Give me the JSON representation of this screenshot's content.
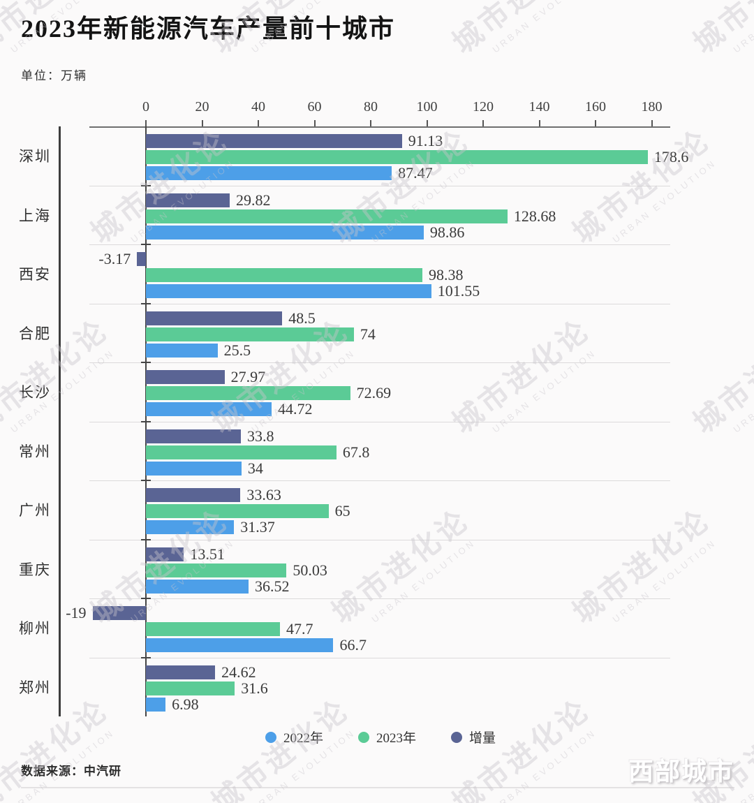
{
  "header": {
    "title": "2023年新能源汽车产量前十城市",
    "unit_label": "单位：万辆"
  },
  "watermark": {
    "line1": "城市进化论",
    "line2": "URBAN EVOLUTION"
  },
  "footer": {
    "source": "数据来源：中汽研",
    "brand": "西部城市"
  },
  "legend": [
    {
      "label": "2022年",
      "color": "#4d9fe8"
    },
    {
      "label": "2023年",
      "color": "#5bcb96"
    },
    {
      "label": "增量",
      "color": "#5a6494"
    }
  ],
  "chart_data": {
    "type": "bar",
    "orientation": "horizontal",
    "title": "2023年新能源汽车产量前十城市",
    "unit": "万辆",
    "xlim": [
      0,
      180
    ],
    "axis_ticks": [
      0,
      20,
      40,
      60,
      80,
      100,
      120,
      140,
      160,
      180
    ],
    "grid": false,
    "legend_position": "bottom",
    "categories": [
      "深圳",
      "上海",
      "西安",
      "合肥",
      "长沙",
      "常州",
      "广州",
      "重庆",
      "柳州",
      "郑州"
    ],
    "row_display_order": [
      "增量",
      "2023年",
      "2022年"
    ],
    "series": [
      {
        "name": "增量",
        "color": "#5a6494",
        "values": [
          91.13,
          29.82,
          -3.17,
          48.5,
          27.97,
          33.8,
          33.63,
          13.51,
          -19,
          24.62
        ]
      },
      {
        "name": "2023年",
        "color": "#5bcb96",
        "values": [
          178.6,
          128.68,
          98.38,
          74,
          72.69,
          67.8,
          65,
          50.03,
          47.7,
          31.6
        ]
      },
      {
        "name": "2022年",
        "color": "#4d9fe8",
        "values": [
          87.47,
          98.86,
          101.55,
          25.5,
          44.72,
          34,
          31.37,
          36.52,
          66.7,
          6.98
        ]
      }
    ]
  }
}
